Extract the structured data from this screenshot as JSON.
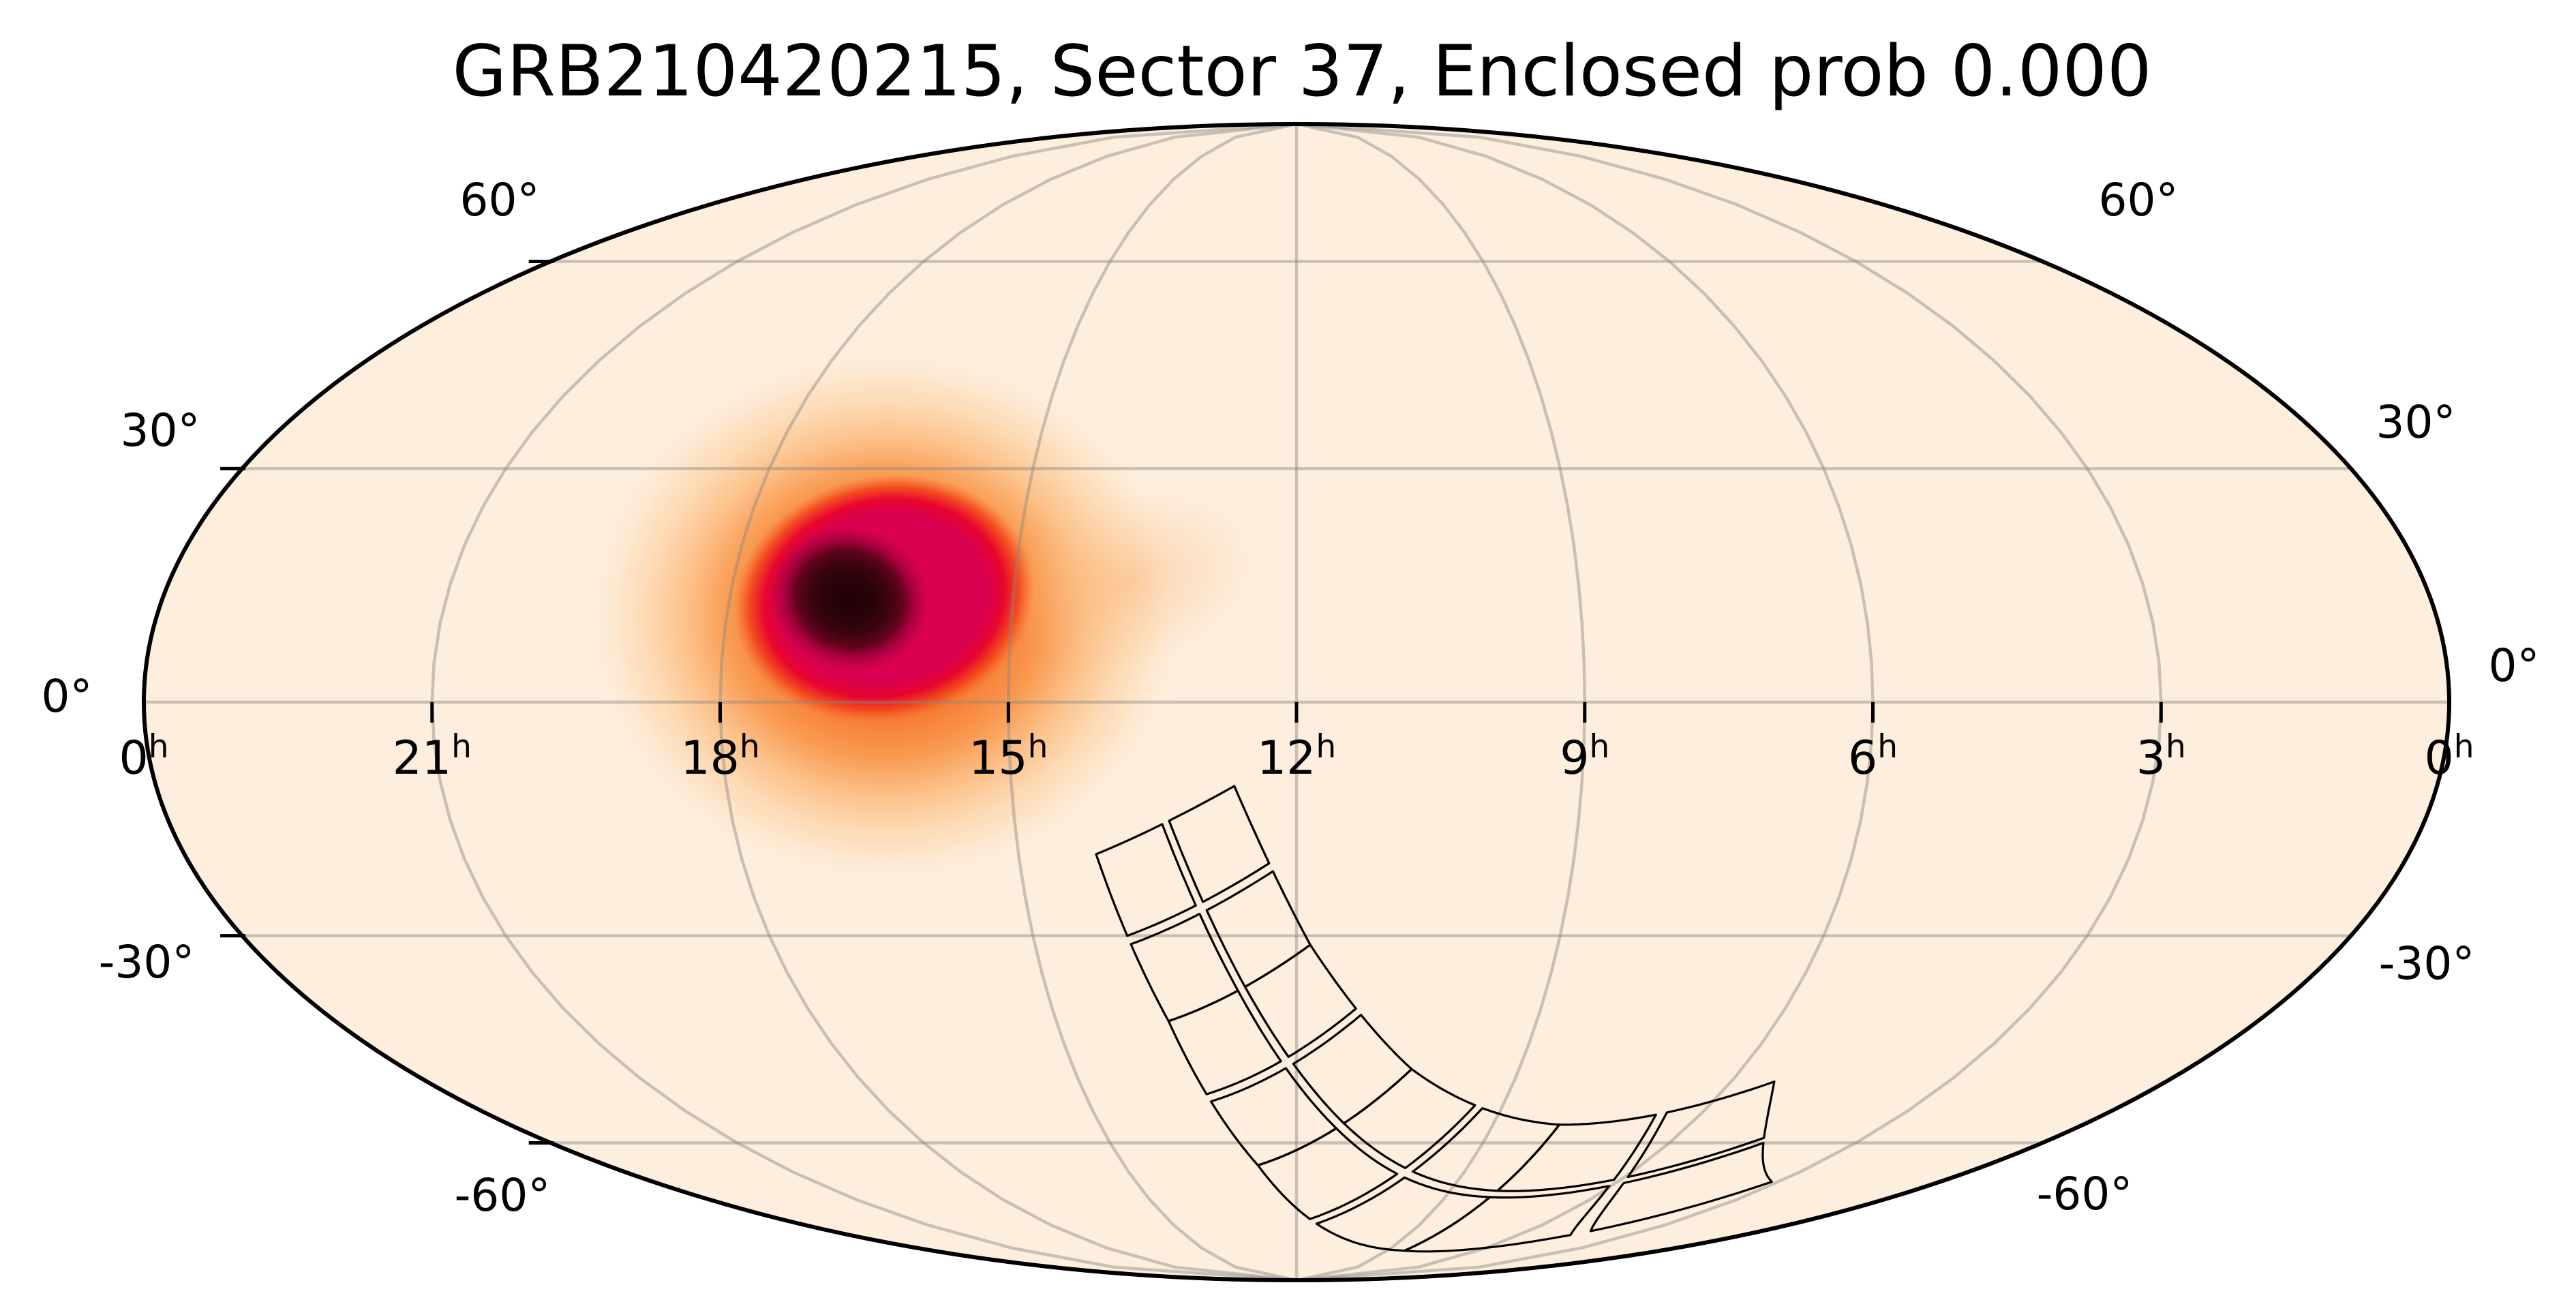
{
  "chart_data": {
    "type": "skymap",
    "projection": "mollweide",
    "coordinate_frame": "equatorial (RA in hours, Dec in degrees)",
    "title": "GRB210420215, Sector 37, Enclosed prob 0.000",
    "grb": "GRB210420215",
    "sector": "Sector 37",
    "enclosed_prob": "0.000",
    "ra_axis": {
      "unit": "h",
      "ticks": [
        {
          "ra": 24,
          "label": "0"
        },
        {
          "ra": 21,
          "label": "21"
        },
        {
          "ra": 18,
          "label": "18"
        },
        {
          "ra": 15,
          "label": "15"
        },
        {
          "ra": 12,
          "label": "12"
        },
        {
          "ra": 9,
          "label": "9"
        },
        {
          "ra": 6,
          "label": "6"
        },
        {
          "ra": 3,
          "label": "3"
        },
        {
          "ra": 0,
          "label": "0"
        }
      ],
      "tick_marks_at_ra": [
        21,
        18,
        15,
        12,
        9,
        6,
        3
      ]
    },
    "dec_axis": {
      "unit": "°",
      "ticks": [
        {
          "dec": 60,
          "label": "60°"
        },
        {
          "dec": 30,
          "label": "30°"
        },
        {
          "dec": 0,
          "label": "0°"
        },
        {
          "dec": -30,
          "label": "-30°"
        },
        {
          "dec": -60,
          "label": "-60°"
        }
      ],
      "tick_marks_at_dec": [
        60,
        30,
        -30,
        -60
      ]
    },
    "graticule": {
      "ra_step_h": 3,
      "dec_step_deg": 30,
      "grid_color": "#8a8784",
      "grid_opacity": 0.45
    },
    "probability_blob": {
      "description": "GRB localization probability density (dark = highest probability)",
      "peak_ra_h": 16.8,
      "peak_dec_deg": 14,
      "core_color": "#200307",
      "inner_color": "#d80050",
      "mid_color": "#f3541e",
      "halo_color": "#fdd8ae"
    },
    "tess_footprint": {
      "description": "TESS Sector 37 camera field-of-view outline (4 cameras, 2x2 CCDs each)",
      "ecliptic_longitude_deg": 205,
      "camera_center_ecliptic_lat_deg": [
        -18,
        -42,
        -66,
        -90
      ],
      "camera_half_size_deg": 12,
      "ccd_gap_half_deg": 0.6,
      "obliquity_deg": 23.44,
      "outline_color": "#000000",
      "enclosed_probability": "0.000"
    },
    "map_colors": {
      "sky_background": "#fdeedd",
      "outside_background": "#ffffff",
      "border_color": "#000000"
    }
  }
}
